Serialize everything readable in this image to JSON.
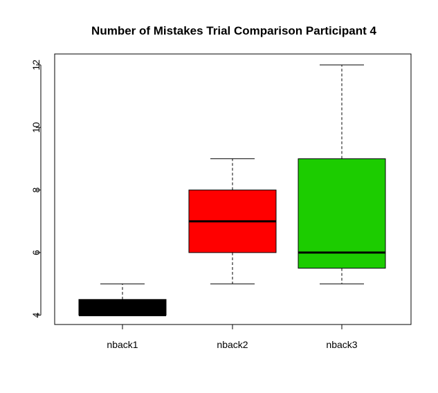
{
  "chart_data": {
    "type": "boxplot",
    "title": "Number of Mistakes Trial Comparison Participant 4",
    "xlabel": "",
    "ylabel": "",
    "ylim": [
      3.7,
      12.35
    ],
    "yticks": [
      4,
      6,
      8,
      10,
      12
    ],
    "grid": false,
    "categories": [
      "nback1",
      "nback2",
      "nback3"
    ],
    "boxes": [
      {
        "category": "nback1",
        "whisker_low": 4,
        "q1": 4,
        "median": 4,
        "q3": 4.5,
        "whisker_high": 5,
        "color": "#000000"
      },
      {
        "category": "nback2",
        "whisker_low": 5,
        "q1": 6,
        "median": 7,
        "q3": 8,
        "whisker_high": 9,
        "color": "#ff0000"
      },
      {
        "category": "nback3",
        "whisker_low": 5,
        "q1": 5.5,
        "median": 6,
        "q3": 9,
        "whisker_high": 12,
        "color": "#1ccc00"
      }
    ]
  }
}
